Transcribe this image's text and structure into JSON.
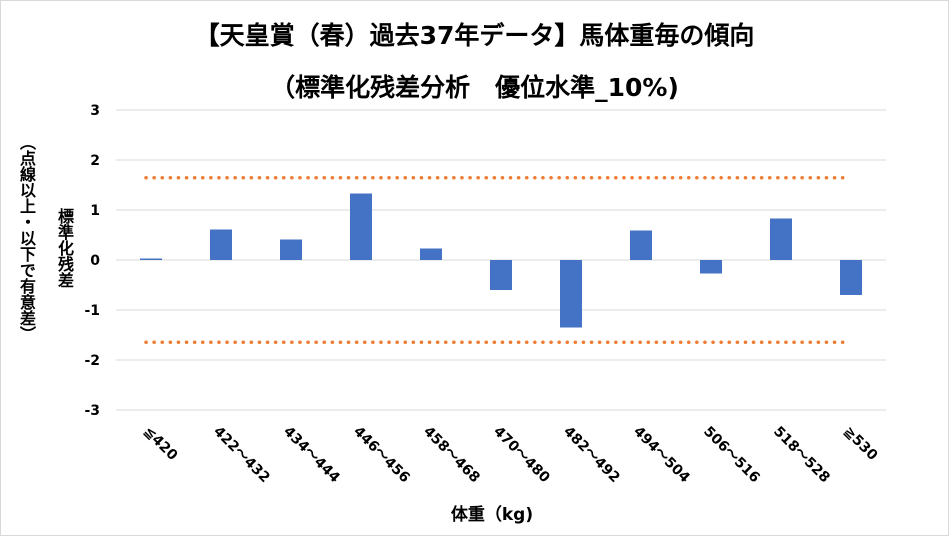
{
  "title": {
    "line1": "【天皇賞（春）過去37年データ】馬体重毎の傾向",
    "line2": "（標準化残差分析　優位水準_10%)"
  },
  "chart_data": {
    "type": "bar",
    "categories": [
      "≦420",
      "422～432",
      "434～444",
      "446～456",
      "458～468",
      "470～480",
      "482～492",
      "494～504",
      "506～516",
      "518～528",
      "≧530"
    ],
    "series": [
      {
        "values": [
          0.03,
          0.61,
          0.41,
          1.33,
          0.23,
          -0.6,
          -1.35,
          0.59,
          -0.27,
          0.83,
          -0.7
        ]
      }
    ],
    "ylim": [
      -3,
      3
    ],
    "yticks": [
      3,
      2,
      1,
      0,
      -1,
      -2,
      -3
    ],
    "xlabel": "体重（kg)",
    "ylabel": "標準化残差",
    "ylabel_note": "（点線以上・以下で有意差）",
    "threshold_lines": [
      1.645,
      -1.645
    ],
    "grid": true,
    "colors": {
      "bar": "#4472c4",
      "threshold": "#ed7d31",
      "grid": "#d9d9d9"
    }
  }
}
